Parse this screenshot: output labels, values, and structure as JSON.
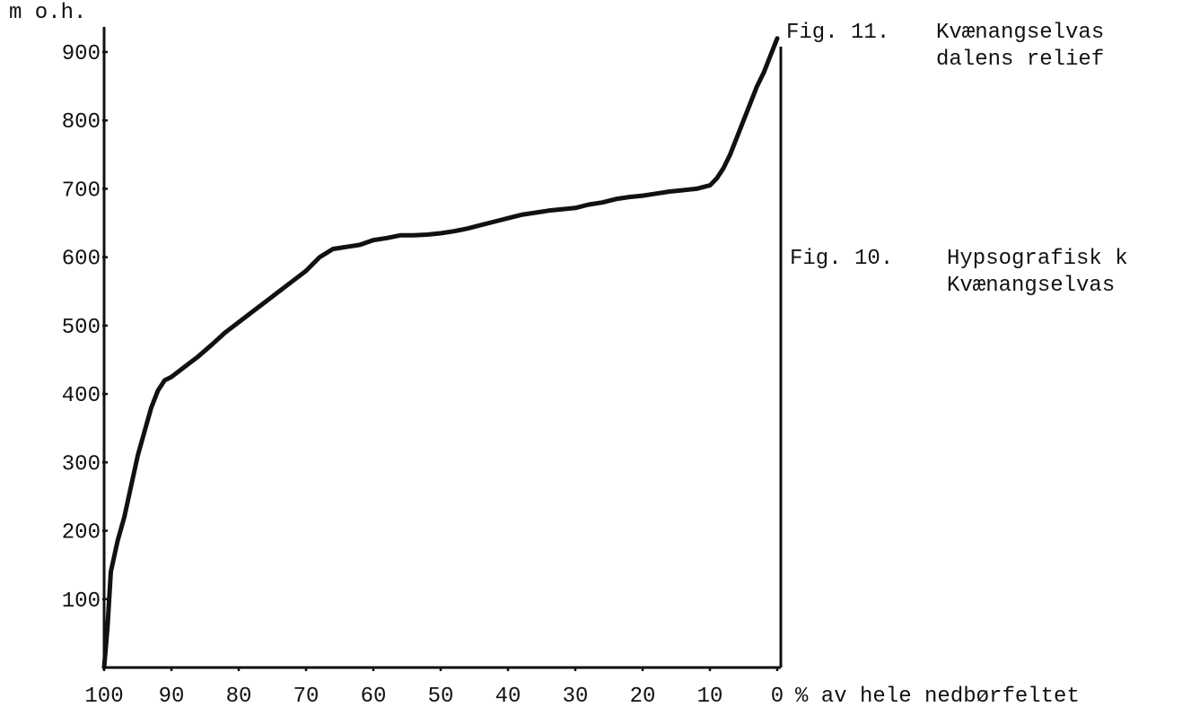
{
  "chart_data": {
    "type": "line",
    "ylabel": "m o.h.",
    "xlabel": "% av hele nedbørfeltet",
    "y_ticks": [
      "100",
      "200",
      "300",
      "400",
      "500",
      "600",
      "700",
      "800",
      "900"
    ],
    "x_ticks": [
      "100",
      "90",
      "80",
      "70",
      "60",
      "50",
      "40",
      "30",
      "20",
      "10",
      "0"
    ],
    "xlim": [
      100,
      0
    ],
    "ylim": [
      0,
      920
    ],
    "grid": false,
    "series": [
      {
        "x": [
          100,
          99.5,
          99,
          98,
          97,
          96,
          95,
          94,
          93,
          92,
          91,
          90,
          88,
          86,
          84,
          82,
          80,
          78,
          76,
          74,
          72,
          70,
          68,
          66,
          64,
          62,
          60,
          58,
          56,
          54,
          52,
          50,
          48,
          46,
          44,
          42,
          40,
          38,
          36,
          34,
          32,
          30,
          28,
          26,
          24,
          22,
          20,
          18,
          16,
          14,
          12,
          10,
          9,
          8,
          7,
          6,
          5,
          4,
          3,
          2,
          1,
          0
        ],
        "y": [
          0,
          60,
          140,
          185,
          220,
          265,
          310,
          345,
          380,
          405,
          420,
          425,
          440,
          455,
          472,
          490,
          505,
          520,
          535,
          550,
          565,
          580,
          600,
          612,
          615,
          618,
          625,
          628,
          632,
          632,
          633,
          635,
          638,
          642,
          647,
          652,
          657,
          662,
          665,
          668,
          670,
          672,
          677,
          680,
          685,
          688,
          690,
          693,
          696,
          698,
          700,
          705,
          715,
          730,
          750,
          775,
          800,
          825,
          850,
          870,
          895,
          920
        ]
      }
    ]
  },
  "captions": [
    {
      "num": "Fig. 11.",
      "lines": [
        "Kvænangselvas",
        "dalens relief"
      ]
    },
    {
      "num": "Fig. 10.",
      "lines": [
        "Hypsografisk k",
        "Kvænangselvas"
      ]
    }
  ]
}
